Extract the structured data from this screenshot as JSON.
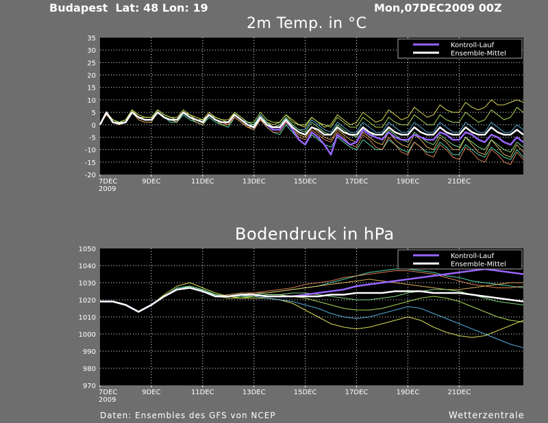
{
  "header": {
    "location": "Budapest  Lat: 48 Lon: 19",
    "datetime": "Mon,07DEC2009 00Z"
  },
  "footer": {
    "source": "Daten: Ensembles des GFS von NCEP",
    "brand": "Wetterzentrale"
  },
  "colors": {
    "background": "#6e6e6e",
    "plot_background": "#000000",
    "control_run": "#9966ff",
    "ensemble_mean": "#ffffff",
    "members": [
      "#ffff66",
      "#66ffcc",
      "#66ccff",
      "#ffcc66",
      "#ccff66",
      "#ff9966",
      "#99ff99",
      "#ffffff",
      "#ff99cc"
    ]
  },
  "chart_data": [
    {
      "type": "line",
      "title": "2m Temp. in °C",
      "ylim": [
        -20,
        35
      ],
      "yticks": [
        -20,
        -15,
        -10,
        -5,
        0,
        5,
        10,
        15,
        20,
        25,
        30,
        35
      ],
      "xlim": [
        0,
        16.5
      ],
      "x_tick_labels": [
        "7DEC",
        "9DEC",
        "11DEC",
        "13DEC",
        "15DEC",
        "17DEC",
        "19DEC",
        "21DEC"
      ],
      "x_tick_sublabel": "2009",
      "grid": true,
      "legend_position": "top-right",
      "x": [
        0,
        0.25,
        0.5,
        0.75,
        1,
        1.25,
        1.5,
        1.75,
        2,
        2.25,
        2.5,
        2.75,
        3,
        3.25,
        3.5,
        3.75,
        4,
        4.25,
        4.5,
        4.75,
        5,
        5.25,
        5.5,
        5.75,
        6,
        6.25,
        6.5,
        6.75,
        7,
        7.25,
        7.5,
        7.75,
        8,
        8.25,
        8.5,
        8.75,
        9,
        9.25,
        9.5,
        9.75,
        10,
        10.25,
        10.5,
        10.75,
        11,
        11.25,
        11.5,
        11.75,
        12,
        12.25,
        12.5,
        12.75,
        13,
        13.25,
        13.5,
        13.75,
        14,
        14.25,
        14.5,
        14.75,
        15,
        15.25,
        15.5,
        15.75,
        16,
        16.25,
        16.5
      ],
      "series": [
        {
          "name": "Kontroll-Lauf",
          "role": "control",
          "values": [
            0,
            5,
            1,
            0.5,
            1,
            5,
            3,
            2,
            2,
            5,
            3,
            2,
            2,
            5,
            3,
            2,
            1,
            4,
            2,
            1,
            1,
            4,
            2,
            0,
            -1,
            3,
            0,
            -2,
            -2,
            2,
            -2,
            -6,
            -8,
            -3,
            -5,
            -8,
            -12,
            -4,
            -6,
            -8,
            -7,
            -2,
            -4,
            -5,
            -6,
            -3,
            -5,
            -6,
            -6,
            -4,
            -5,
            -6,
            -6,
            -3,
            -4,
            -6,
            -6,
            -3,
            -4,
            -6,
            -7,
            -4,
            -5,
            -7,
            -8,
            -5,
            -7
          ]
        },
        {
          "name": "Ensemble-Mittel",
          "role": "mean",
          "values": [
            0,
            5,
            1,
            0.5,
            1,
            5,
            3,
            2,
            2,
            5,
            3,
            2,
            2,
            5,
            3,
            2,
            1,
            4,
            2,
            1,
            1,
            4,
            2,
            0,
            -1,
            3,
            0,
            -1,
            -1,
            2,
            -1,
            -3,
            -4,
            -1,
            -2,
            -4,
            -4,
            -1,
            -3,
            -4,
            -4,
            -1,
            -3,
            -4,
            -4,
            -1,
            -3,
            -4,
            -4,
            -1,
            -3,
            -4,
            -4,
            -1,
            -3,
            -4,
            -4,
            -1,
            -3,
            -4,
            -4,
            -1,
            -3,
            -4,
            -4,
            -2,
            -4
          ]
        },
        {
          "name": "",
          "role": "member",
          "values": [
            0,
            5,
            2,
            1,
            2,
            6,
            4,
            3,
            3,
            6,
            4,
            3,
            3,
            6,
            4,
            3,
            2,
            5,
            3,
            2,
            2,
            5,
            3,
            1,
            0,
            4,
            1,
            0,
            1,
            4,
            2,
            0,
            -1,
            3,
            1,
            -1,
            0,
            4,
            2,
            0,
            1,
            5,
            3,
            1,
            2,
            6,
            4,
            2,
            3,
            7,
            5,
            3,
            4,
            8,
            6,
            5,
            5,
            9,
            7,
            6,
            7,
            10,
            8,
            8,
            9,
            10,
            9
          ]
        },
        {
          "name": "",
          "role": "member",
          "values": [
            0,
            5,
            1,
            0,
            1,
            5,
            3,
            2,
            2,
            5,
            3,
            1,
            1,
            4,
            2,
            1,
            0,
            3,
            1,
            0,
            -1,
            3,
            1,
            -1,
            -2,
            2,
            -1,
            -3,
            -4,
            0,
            -3,
            -6,
            -8,
            -4,
            -6,
            -8,
            -9,
            -5,
            -7,
            -9,
            -10,
            -6,
            -8,
            -10,
            -10,
            -6,
            -8,
            -10,
            -11,
            -7,
            -9,
            -11,
            -11,
            -7,
            -9,
            -12,
            -12,
            -8,
            -10,
            -12,
            -13,
            -9,
            -11,
            -13,
            -14,
            -10,
            -13
          ]
        },
        {
          "name": "",
          "role": "member",
          "values": [
            0,
            5,
            1,
            0.5,
            1,
            5,
            3,
            2,
            2,
            5,
            3,
            2,
            2,
            5,
            3,
            2,
            1,
            4,
            2,
            1,
            1,
            4,
            2,
            1,
            0,
            4,
            1,
            -1,
            -1,
            3,
            0,
            -2,
            -2,
            2,
            0,
            -2,
            -3,
            1,
            -1,
            -3,
            -3,
            1,
            -1,
            -3,
            -3,
            1,
            -1,
            -3,
            -3,
            1,
            -1,
            -3,
            -3,
            1,
            -1,
            -3,
            -3,
            1,
            -1,
            -3,
            -3,
            1,
            -1,
            -3,
            -3,
            0,
            -2
          ]
        },
        {
          "name": "",
          "role": "member",
          "values": [
            0,
            4,
            1,
            0,
            1,
            5,
            2,
            1,
            1,
            5,
            3,
            2,
            1,
            5,
            3,
            1,
            0,
            4,
            2,
            0,
            0,
            3,
            1,
            -1,
            -1,
            2,
            0,
            -2,
            -2,
            1,
            -2,
            -4,
            -5,
            -1,
            -3,
            -5,
            -6,
            -2,
            -4,
            -6,
            -7,
            -3,
            -5,
            -7,
            -8,
            -3,
            -6,
            -8,
            -9,
            -4,
            -6,
            -9,
            -10,
            -5,
            -7,
            -10,
            -10,
            -5,
            -8,
            -11,
            -12,
            -6,
            -9,
            -12,
            -13,
            -8,
            -11
          ]
        },
        {
          "name": "",
          "role": "member",
          "values": [
            0,
            5,
            2,
            1,
            2,
            6,
            3,
            3,
            3,
            6,
            4,
            3,
            2,
            5,
            4,
            2,
            2,
            4,
            3,
            2,
            1,
            5,
            3,
            1,
            1,
            5,
            2,
            1,
            1,
            4,
            1,
            0,
            0,
            3,
            1,
            0,
            -1,
            3,
            1,
            -1,
            -1,
            3,
            1,
            -1,
            -1,
            3,
            1,
            0,
            0,
            4,
            2,
            0,
            0,
            4,
            2,
            1,
            1,
            5,
            3,
            1,
            2,
            6,
            4,
            2,
            3,
            7,
            5
          ]
        },
        {
          "name": "",
          "role": "member",
          "values": [
            0,
            5,
            1,
            0,
            1,
            5,
            3,
            2,
            2,
            5,
            3,
            2,
            2,
            5,
            3,
            2,
            1,
            4,
            2,
            1,
            0,
            3,
            1,
            -1,
            -2,
            2,
            -1,
            -3,
            -3,
            1,
            -2,
            -5,
            -6,
            -2,
            -4,
            -6,
            -7,
            -3,
            -5,
            -8,
            -9,
            -4,
            -6,
            -9,
            -10,
            -5,
            -8,
            -11,
            -12,
            -7,
            -9,
            -12,
            -13,
            -8,
            -10,
            -13,
            -14,
            -9,
            -11,
            -14,
            -15,
            -10,
            -12,
            -15,
            -16,
            -11,
            -14
          ]
        },
        {
          "name": "",
          "role": "member",
          "values": [
            0,
            5,
            1,
            1,
            1,
            5,
            3,
            2,
            2,
            5,
            3,
            2,
            2,
            5,
            3,
            2,
            1,
            4,
            2,
            1,
            1,
            4,
            2,
            0,
            0,
            3,
            1,
            -1,
            0,
            3,
            0,
            -2,
            -3,
            1,
            -1,
            -3,
            -4,
            0,
            -2,
            -4,
            -5,
            -1,
            -3,
            -5,
            -6,
            -2,
            -4,
            -6,
            -7,
            -3,
            -5,
            -7,
            -8,
            -4,
            -6,
            -8,
            -9,
            -5,
            -7,
            -9,
            -10,
            -6,
            -8,
            -10,
            -11,
            -7,
            -9
          ]
        }
      ]
    },
    {
      "type": "line",
      "title": "Bodendruck in hPa",
      "ylim": [
        970,
        1050
      ],
      "yticks": [
        970,
        980,
        990,
        1000,
        1010,
        1020,
        1030,
        1040,
        1050
      ],
      "xlim": [
        0,
        16.5
      ],
      "x_tick_labels": [
        "7DEC",
        "9DEC",
        "11DEC",
        "13DEC",
        "15DEC",
        "17DEC",
        "19DEC",
        "21DEC"
      ],
      "x_tick_sublabel": "2009",
      "grid": true,
      "legend_position": "top-right",
      "x": [
        0,
        0.5,
        1,
        1.5,
        2,
        2.5,
        3,
        3.5,
        4,
        4.5,
        5,
        5.5,
        6,
        6.5,
        7,
        7.5,
        8,
        8.5,
        9,
        9.5,
        10,
        10.5,
        11,
        11.5,
        12,
        12.5,
        13,
        13.5,
        14,
        14.5,
        15,
        15.5,
        16,
        16.5
      ],
      "series": [
        {
          "name": "Kontroll-Lauf",
          "role": "control",
          "values": [
            1019,
            1019,
            1017,
            1013,
            1017,
            1022,
            1026,
            1027,
            1025,
            1022,
            1022,
            1023,
            1023,
            1022,
            1022,
            1022,
            1023,
            1024,
            1025,
            1026,
            1028,
            1029,
            1030,
            1031,
            1032,
            1033,
            1034,
            1035,
            1036,
            1037,
            1038,
            1037,
            1036,
            1035
          ]
        },
        {
          "name": "Ensemble-Mittel",
          "role": "mean",
          "values": [
            1019,
            1019,
            1017,
            1013,
            1017,
            1022,
            1026,
            1027,
            1025,
            1022,
            1022,
            1023,
            1023,
            1022,
            1022,
            1022,
            1022,
            1022,
            1023,
            1023,
            1024,
            1024,
            1024,
            1025,
            1025,
            1025,
            1024,
            1024,
            1024,
            1023,
            1022,
            1021,
            1020,
            1019
          ]
        },
        {
          "name": "",
          "role": "member",
          "values": [
            1019,
            1019,
            1017,
            1013,
            1017,
            1023,
            1028,
            1030,
            1027,
            1024,
            1022,
            1021,
            1021,
            1021,
            1020,
            1018,
            1014,
            1010,
            1006,
            1004,
            1003,
            1004,
            1006,
            1008,
            1010,
            1008,
            1004,
            1001,
            999,
            998,
            999,
            1002,
            1005,
            1008
          ]
        },
        {
          "name": "",
          "role": "member",
          "values": [
            1019,
            1019,
            1017,
            1013,
            1017,
            1022,
            1027,
            1028,
            1026,
            1023,
            1022,
            1022,
            1023,
            1024,
            1025,
            1026,
            1027,
            1028,
            1030,
            1032,
            1034,
            1036,
            1037,
            1038,
            1038,
            1037,
            1036,
            1034,
            1033,
            1031,
            1030,
            1029,
            1028,
            1027
          ]
        },
        {
          "name": "",
          "role": "member",
          "values": [
            1019,
            1019,
            1017,
            1013,
            1017,
            1022,
            1026,
            1027,
            1025,
            1023,
            1022,
            1022,
            1022,
            1021,
            1020,
            1019,
            1017,
            1015,
            1012,
            1010,
            1009,
            1010,
            1012,
            1014,
            1016,
            1015,
            1012,
            1009,
            1006,
            1003,
            1000,
            997,
            994,
            992
          ]
        },
        {
          "name": "",
          "role": "member",
          "values": [
            1019,
            1019,
            1017,
            1013,
            1017,
            1022,
            1026,
            1027,
            1025,
            1022,
            1023,
            1024,
            1024,
            1024,
            1025,
            1026,
            1027,
            1028,
            1029,
            1030,
            1031,
            1032,
            1031,
            1030,
            1029,
            1028,
            1027,
            1026,
            1026,
            1027,
            1028,
            1029,
            1030,
            1030
          ]
        },
        {
          "name": "",
          "role": "member",
          "values": [
            1019,
            1019,
            1017,
            1013,
            1017,
            1022,
            1026,
            1027,
            1025,
            1022,
            1021,
            1021,
            1022,
            1023,
            1023,
            1022,
            1021,
            1019,
            1017,
            1015,
            1014,
            1014,
            1015,
            1017,
            1019,
            1021,
            1022,
            1021,
            1019,
            1016,
            1013,
            1010,
            1008,
            1007
          ]
        },
        {
          "name": "",
          "role": "member",
          "values": [
            1019,
            1019,
            1017,
            1013,
            1017,
            1022,
            1026,
            1027,
            1025,
            1022,
            1022,
            1023,
            1024,
            1025,
            1026,
            1027,
            1029,
            1030,
            1031,
            1033,
            1034,
            1035,
            1036,
            1037,
            1037,
            1036,
            1035,
            1033,
            1031,
            1029,
            1028,
            1027,
            1027,
            1028
          ]
        },
        {
          "name": "",
          "role": "member",
          "values": [
            1019,
            1019,
            1017,
            1013,
            1017,
            1022,
            1026,
            1028,
            1026,
            1023,
            1022,
            1022,
            1022,
            1023,
            1023,
            1024,
            1024,
            1023,
            1022,
            1021,
            1020,
            1020,
            1021,
            1022,
            1024,
            1025,
            1026,
            1026,
            1025,
            1023,
            1021,
            1019,
            1018,
            1017
          ]
        }
      ]
    }
  ]
}
